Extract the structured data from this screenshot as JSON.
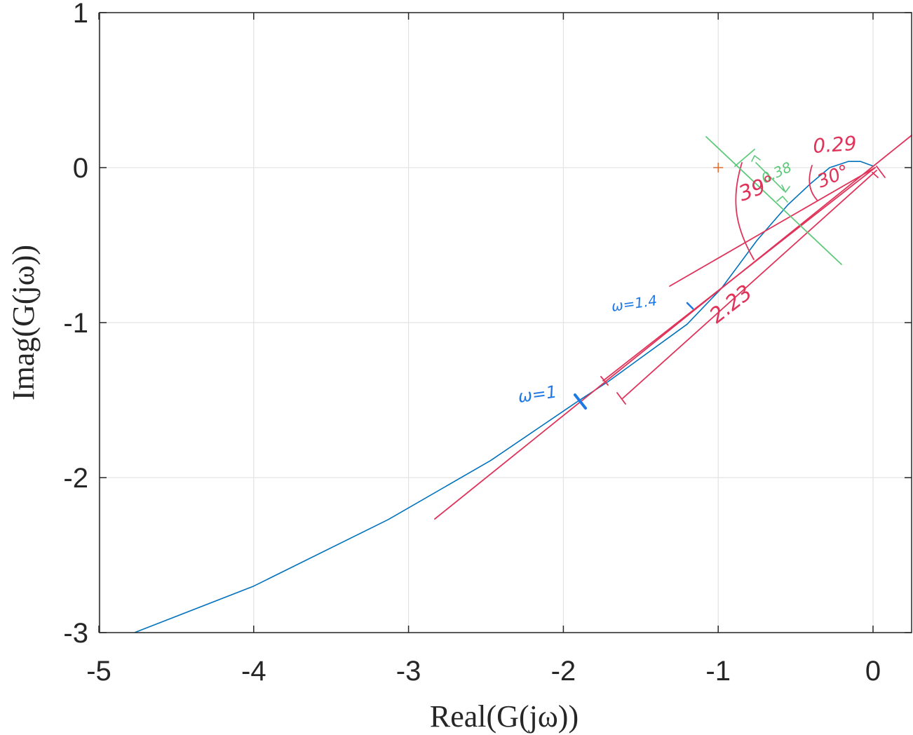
{
  "chart_data": {
    "type": "line",
    "xlabel": "Real(G(jω))",
    "ylabel": "Imag(G(jω))",
    "xlim": [
      -5,
      0.25
    ],
    "ylim": [
      -3,
      1
    ],
    "grid": true,
    "xticks": [
      "-5",
      "-4",
      "-3",
      "-2",
      "-1",
      "0"
    ],
    "xtick_values": [
      -5,
      -4,
      -3,
      -2,
      -1,
      0
    ],
    "yticks": [
      "1",
      "0",
      "-1",
      "-2",
      "-3"
    ],
    "ytick_values": [
      1,
      0,
      -1,
      -2,
      -3
    ],
    "colors": {
      "curve": "#0072bd",
      "annotation_red": "#e0335a",
      "annotation_green": "#5dc97a",
      "annotation_blue": "#1e78e6",
      "critical_point": "#e06a2c",
      "grid": "#e3e3e3",
      "axes": "#262626"
    },
    "series": [
      {
        "x": [
          -4.77,
          -4.0,
          -3.13,
          -2.47,
          -1.91,
          -1.71,
          -1.2,
          -0.98,
          -0.75,
          -0.55,
          -0.4,
          -0.28,
          -0.16,
          -0.08,
          0.0
        ],
        "y": [
          -3.0,
          -2.7,
          -2.27,
          -1.89,
          -1.51,
          -1.38,
          -1.01,
          -0.78,
          -0.47,
          -0.24,
          -0.1,
          0.0,
          0.04,
          0.04,
          0.01
        ]
      }
    ],
    "critical_point": {
      "x": -1,
      "y": 0,
      "marker": "+"
    },
    "annotations": {
      "w1": "ω=1",
      "w14": "ω=1.4",
      "len223": "2.23",
      "len029": "0.29",
      "len038": "0.38",
      "angle39": "39°",
      "angle30": "30°"
    }
  }
}
